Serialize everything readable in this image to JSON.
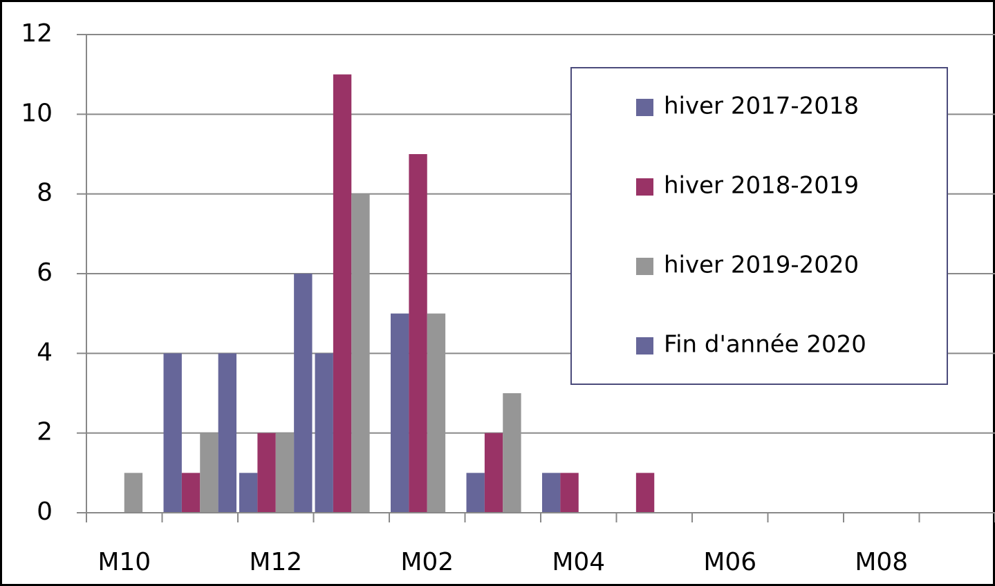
{
  "chart_data": {
    "type": "bar",
    "categories": [
      "M10",
      null,
      "M12",
      null,
      "M02",
      null,
      "M04",
      null,
      "M06",
      null,
      "M08",
      null
    ],
    "series": [
      {
        "name": "hiver 2017-2018",
        "color": "#666699",
        "values": [
          0,
          4,
          1,
          4,
          5,
          1,
          1,
          0,
          0,
          0,
          0,
          0
        ]
      },
      {
        "name": "hiver 2018-2019",
        "color": "#993366",
        "values": [
          0,
          1,
          2,
          11,
          9,
          2,
          1,
          1,
          0,
          0,
          0,
          0
        ]
      },
      {
        "name": "hiver 2019-2020",
        "color": "#969696",
        "values": [
          1,
          2,
          2,
          8,
          5,
          3,
          0,
          0,
          0,
          0,
          0,
          0
        ]
      },
      {
        "name": "Fin d'année 2020",
        "color": "#666699",
        "values": [
          0,
          4,
          6,
          0,
          0,
          0,
          0,
          0,
          0,
          0,
          0,
          0
        ]
      }
    ],
    "ylim": [
      0,
      12
    ],
    "yticks": [
      0,
      2,
      4,
      6,
      8,
      10,
      12
    ],
    "grid": true,
    "legend": "upper right"
  }
}
